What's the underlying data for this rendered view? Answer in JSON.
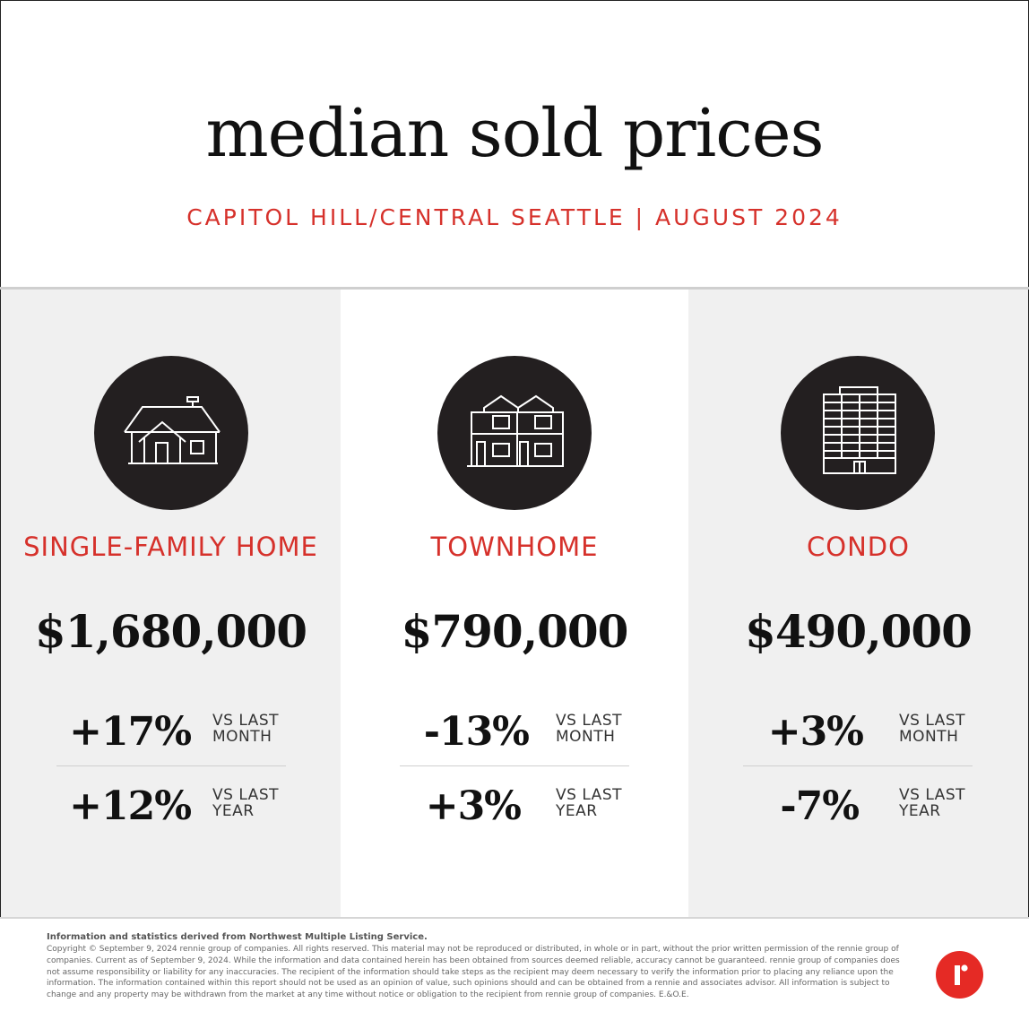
{
  "header": {
    "title": "median sold prices",
    "subtitle": "CAPITOL HILL/CENTRAL SEATTLE | AUGUST 2024"
  },
  "categories": [
    {
      "icon": "single-family-house-icon",
      "label": "SINGLE-FAMILY HOME",
      "price": "$1,680,000",
      "month_change": "+17%",
      "month_label_1": "VS LAST",
      "month_label_2": "MONTH",
      "year_change": "+12%",
      "year_label_1": "VS LAST",
      "year_label_2": "YEAR"
    },
    {
      "icon": "townhome-icon",
      "label": "TOWNHOME",
      "price": "$790,000",
      "month_change": "-13%",
      "month_label_1": "VS LAST",
      "month_label_2": "MONTH",
      "year_change": "+3%",
      "year_label_1": "VS LAST",
      "year_label_2": "YEAR"
    },
    {
      "icon": "condo-building-icon",
      "label": "CONDO",
      "price": "$490,000",
      "month_change": "+3%",
      "month_label_1": "VS LAST",
      "month_label_2": "MONTH",
      "year_change": "-7%",
      "year_label_1": "VS LAST",
      "year_label_2": "YEAR"
    }
  ],
  "footer": {
    "source": "Information and statistics derived from Northwest Multiple Listing Service.",
    "disclaimer": "Copyright © September 9, 2024 rennie group of companies. All rights reserved. This material may not be reproduced or distributed, in whole or in part, without the prior written permission of the rennie group of companies. Current as of September 9, 2024. While the information and data contained herein has been obtained from sources deemed reliable, accuracy cannot be guaranteed. rennie group of companies does not assume responsibility or liability for any inaccuracies. The recipient of the information should take steps as the recipient may deem necessary to verify the information prior to placing any reliance upon the information. The information contained within this report should not be used as an opinion of value, such opinions should and can be obtained from a rennie and associates advisor. All information is subject to change and any property may be withdrawn from the market at any time without notice or obligation to the recipient from rennie group of companies. E.&O.E.",
    "logo": "rennie-logo"
  },
  "colors": {
    "accent": "#d6312b",
    "logo_red": "#e52a25",
    "icon_circle": "#231f20",
    "panel_gray": "#f0f0f0"
  }
}
